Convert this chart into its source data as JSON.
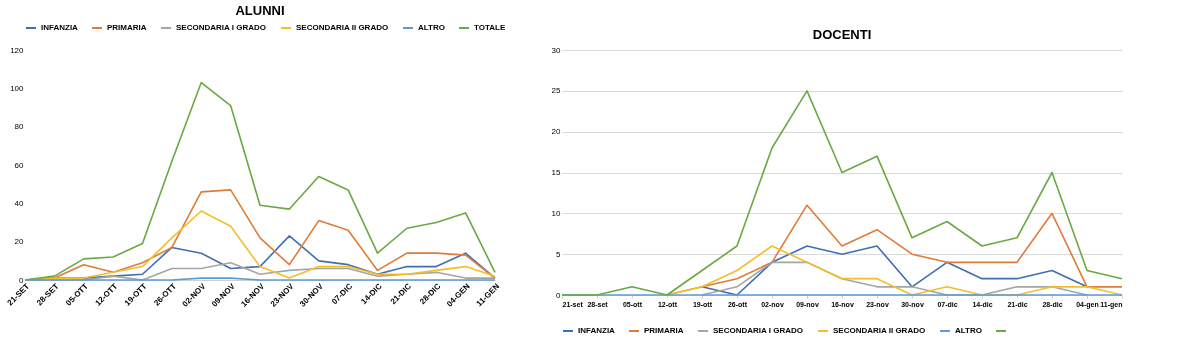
{
  "chart_data": [
    {
      "type": "line",
      "title": "ALUNNI",
      "legend": "top",
      "grid": false,
      "categories": [
        "21-SET",
        "28-SET",
        "05-OTT",
        "12-OTT",
        "19-OTT",
        "26-OTT",
        "02-NOV",
        "09-NOV",
        "16-NOV",
        "23-NOV",
        "30-NOV",
        "07-DIC",
        "14-DIC",
        "21-DIC",
        "28-DIC",
        "04-GEN",
        "11-GEN"
      ],
      "ylim": [
        0,
        120
      ],
      "yticks": [
        0,
        20,
        40,
        60,
        80,
        100,
        120
      ],
      "series": [
        {
          "name": "INFANZIA",
          "color": "#3f6eb5",
          "values": [
            0,
            1,
            1,
            2,
            3,
            17,
            14,
            6,
            7,
            23,
            10,
            8,
            3,
            7,
            7,
            14,
            1
          ]
        },
        {
          "name": "PRIMARIA",
          "color": "#e07b39",
          "values": [
            0,
            1,
            8,
            4,
            9,
            17,
            46,
            47,
            22,
            8,
            31,
            26,
            5,
            14,
            14,
            13,
            1
          ]
        },
        {
          "name": "SECONDARIA I GRADO",
          "color": "#a5a5a5",
          "values": [
            0,
            0,
            0,
            2,
            0,
            6,
            6,
            9,
            3,
            5,
            6,
            6,
            2,
            3,
            4,
            1,
            1
          ]
        },
        {
          "name": "SECONDARIA II GRADO",
          "color": "#f5bd2a",
          "values": [
            0,
            1,
            1,
            4,
            7,
            22,
            36,
            28,
            7,
            1,
            7,
            7,
            3,
            3,
            5,
            7,
            2
          ]
        },
        {
          "name": "ALTRO",
          "color": "#5b9bd5",
          "values": [
            0,
            0,
            0,
            0,
            0,
            0,
            1,
            1,
            0,
            0,
            0,
            0,
            0,
            0,
            0,
            0,
            0
          ]
        },
        {
          "name": "TOTALE",
          "color": "#6aa843",
          "values": [
            0,
            2,
            11,
            12,
            19,
            62,
            103,
            91,
            39,
            37,
            54,
            47,
            14,
            27,
            30,
            35,
            4
          ]
        }
      ]
    },
    {
      "type": "line",
      "title": "DOCENTI",
      "legend": "bottom",
      "grid": "y",
      "categories": [
        "21-set",
        "28-set",
        "05-ott",
        "12-ott",
        "19-ott",
        "26-ott",
        "02-nov",
        "09-nov",
        "16-nov",
        "23-nov",
        "30-nov",
        "07-dic",
        "14-dic",
        "21-dic",
        "28-dic",
        "04-gen",
        "11-gen"
      ],
      "ylim": [
        0,
        30
      ],
      "yticks": [
        0,
        5,
        10,
        15,
        20,
        25,
        30
      ],
      "series": [
        {
          "name": "INFANZIA",
          "color": "#3f6eb5",
          "values": [
            null,
            null,
            null,
            null,
            1,
            0,
            4,
            6,
            5,
            6,
            1,
            4,
            2,
            2,
            3,
            1,
            null
          ]
        },
        {
          "name": "PRIMARIA",
          "color": "#e07b39",
          "values": [
            null,
            null,
            null,
            0,
            1,
            2,
            4,
            11,
            6,
            8,
            5,
            4,
            4,
            4,
            10,
            1,
            1
          ]
        },
        {
          "name": "SECONDARIA I GRADO",
          "color": "#a5a5a5",
          "values": [
            null,
            null,
            null,
            null,
            0,
            1,
            4,
            4,
            2,
            1,
            1,
            0,
            0,
            1,
            1,
            0,
            null
          ]
        },
        {
          "name": "SECONDARIA II GRADO",
          "color": "#f5bd2a",
          "values": [
            null,
            null,
            null,
            0,
            1,
            3,
            6,
            4,
            2,
            2,
            0,
            1,
            0,
            0,
            1,
            1,
            0
          ]
        },
        {
          "name": "ALTRO",
          "color": "#5b9bd5",
          "values": [
            0,
            0,
            0,
            0,
            0,
            0,
            0,
            0,
            0,
            0,
            0,
            0,
            0,
            0,
            0,
            0,
            0
          ]
        },
        {
          "color": "#6aa843",
          "values": [
            0,
            0,
            1,
            0,
            3,
            6,
            18,
            25,
            15,
            17,
            7,
            9,
            6,
            7,
            15,
            3,
            2
          ]
        }
      ]
    }
  ]
}
